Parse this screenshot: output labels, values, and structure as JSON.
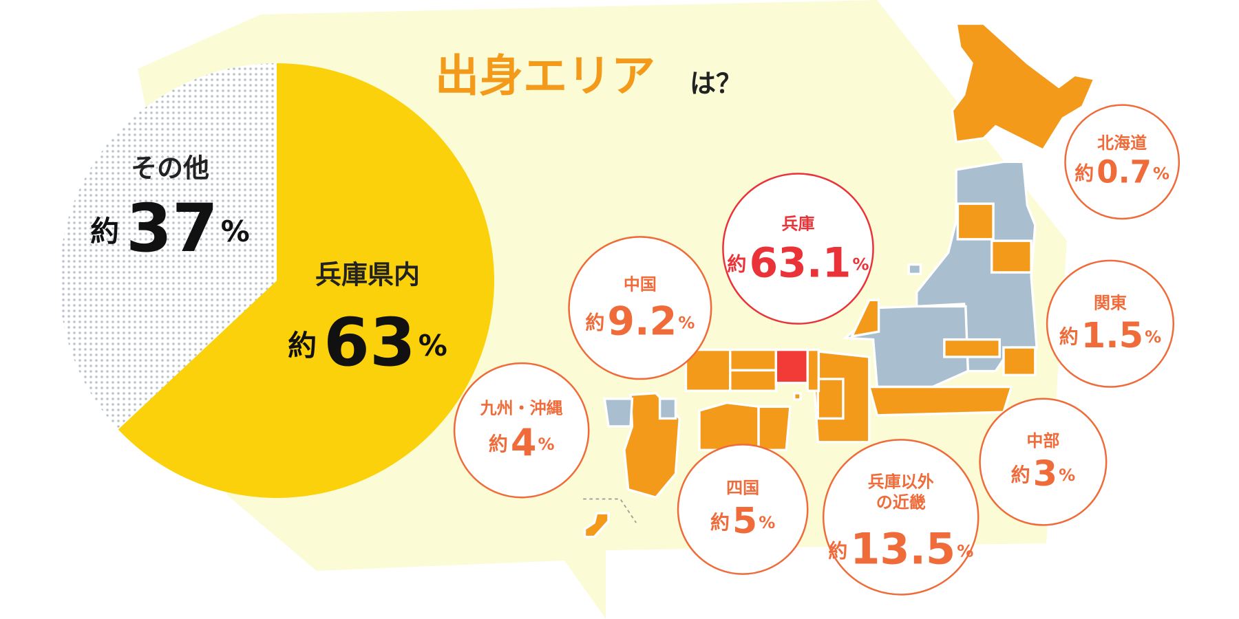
{
  "title": "出身エリア",
  "title_suffix": "は？",
  "chart_data": {
    "type": "pie",
    "categories": [
      "兵庫県内",
      "その他"
    ],
    "values": [
      63,
      37
    ],
    "colors": [
      "#fbd10b",
      "#b9c2cc"
    ],
    "slice_fills": [
      "solid",
      "dots"
    ],
    "value_prefix": "約",
    "value_unit": "%"
  },
  "regions": [
    {
      "label": "北海道",
      "value": 0.7,
      "color": "#ef6b3a"
    },
    {
      "label": "兵庫",
      "value": 63.1,
      "color": "#ea3338"
    },
    {
      "label": "中国",
      "value": 9.2,
      "color": "#ef6b3a"
    },
    {
      "label": "関東",
      "value": 1.5,
      "color": "#ef6b3a"
    },
    {
      "label": "九州・沖縄",
      "value": 4,
      "color": "#ef6b3a"
    },
    {
      "label": "中部",
      "value": 3,
      "color": "#ef6b3a"
    },
    {
      "label": "四国",
      "value": 5,
      "color": "#ef6b3a"
    },
    {
      "label": [
        "兵庫以外",
        "の近畿"
      ],
      "value": 13.5,
      "color": "#ef6b3a"
    }
  ],
  "region_prefix": "約",
  "region_unit": "%"
}
